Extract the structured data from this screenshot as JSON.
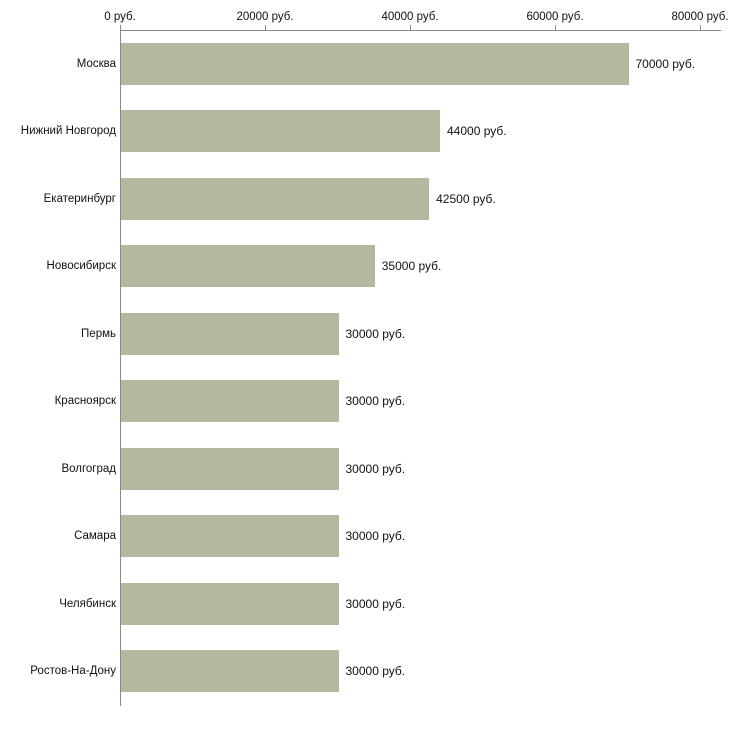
{
  "chart_data": {
    "type": "bar",
    "orientation": "horizontal",
    "title": "",
    "xlabel": "",
    "ylabel": "",
    "categories": [
      "Москва",
      "Нижний Новгород",
      "Екатеринбург",
      "Новосибирск",
      "Пермь",
      "Красноярск",
      "Волгоград",
      "Самара",
      "Челябинск",
      "Ростов-На-Дону"
    ],
    "values": [
      70000,
      44000,
      42500,
      35000,
      30000,
      30000,
      30000,
      30000,
      30000,
      30000
    ],
    "value_labels": [
      "70000 руб.",
      "44000 руб.",
      "42500 руб.",
      "35000 руб.",
      "30000 руб.",
      "30000 руб.",
      "30000 руб.",
      "30000 руб.",
      "30000 руб.",
      "30000 руб."
    ],
    "x_ticks": [
      0,
      20000,
      40000,
      60000,
      80000
    ],
    "x_tick_labels": [
      "0 руб.",
      "20000 руб.",
      "40000 руб.",
      "60000 руб.",
      "80000 руб."
    ],
    "xlim": [
      0,
      80000
    ],
    "grid": false,
    "legend": "none",
    "bar_color": "#b2b99e",
    "axis_color": "#8a8a8a",
    "background_color": "#ffffff"
  }
}
